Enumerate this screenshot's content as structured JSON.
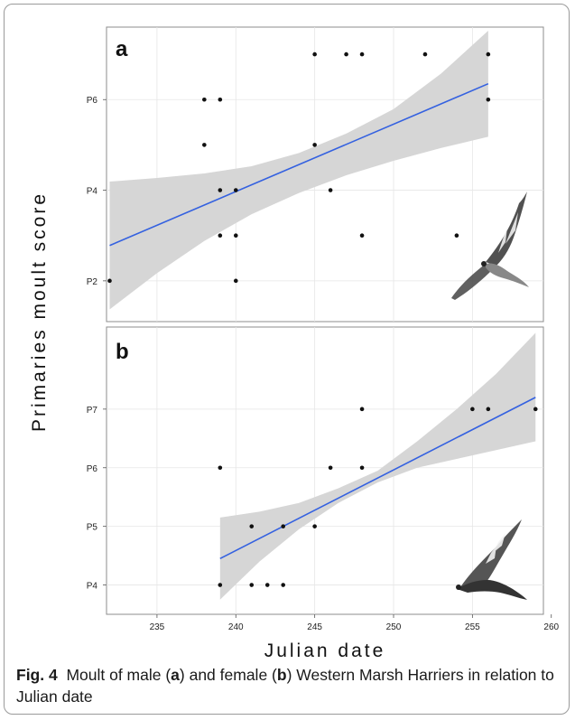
{
  "figure": {
    "ylabel": "Primaries moult score",
    "xlabel": "Julian date"
  },
  "caption": {
    "label": "Fig. 4",
    "text_1": "Moult of male (",
    "a": "a",
    "text_2": ") and female (",
    "b": "b",
    "text_3": ") Western Marsh Harriers in relation to Julian date"
  },
  "chart_data": [
    {
      "type": "scatter",
      "panel_label": "a",
      "x_ticks": [
        235,
        240,
        245,
        250,
        255,
        260
      ],
      "xlim": [
        231.8,
        259.5
      ],
      "y_ticks": [
        "P2",
        "P4",
        "P6"
      ],
      "ylim": [
        1.1,
        7.6
      ],
      "points": [
        [
          232,
          2
        ],
        [
          238,
          6
        ],
        [
          238,
          5
        ],
        [
          239,
          6
        ],
        [
          239,
          4
        ],
        [
          239,
          3
        ],
        [
          240,
          4
        ],
        [
          240,
          3
        ],
        [
          240,
          2
        ],
        [
          245,
          7
        ],
        [
          247,
          7
        ],
        [
          248,
          7
        ],
        [
          252,
          7
        ],
        [
          256,
          7
        ],
        [
          256,
          6
        ],
        [
          245,
          5
        ],
        [
          246,
          4
        ],
        [
          248,
          3
        ],
        [
          254,
          3
        ]
      ],
      "fit": {
        "x": [
          232,
          256
        ],
        "y": [
          2.78,
          6.35
        ]
      },
      "band_x": [
        232,
        235,
        238,
        241,
        244,
        247,
        250,
        253,
        256
      ],
      "band_lower": [
        1.37,
        2.17,
        2.88,
        3.47,
        3.94,
        4.33,
        4.65,
        4.93,
        5.18
      ],
      "band_upper": [
        4.19,
        4.27,
        4.37,
        4.53,
        4.82,
        5.25,
        5.79,
        6.57,
        7.52
      ],
      "grid": true,
      "fit_color": "#3461e0",
      "band_color": "#d6d6d6"
    },
    {
      "type": "scatter",
      "panel_label": "b",
      "x_ticks": [
        235,
        240,
        245,
        250,
        255,
        260
      ],
      "xlim": [
        231.8,
        259.5
      ],
      "y_ticks": [
        "P4",
        "P5",
        "P6",
        "P7"
      ],
      "y_tick_values": [
        4,
        5,
        6,
        7
      ],
      "ylim": [
        3.5,
        8.4
      ],
      "points": [
        [
          239,
          6
        ],
        [
          239,
          4
        ],
        [
          241,
          5
        ],
        [
          241,
          4
        ],
        [
          242,
          4
        ],
        [
          243,
          5
        ],
        [
          243,
          4
        ],
        [
          245,
          5
        ],
        [
          246,
          6
        ],
        [
          248,
          7
        ],
        [
          248,
          6
        ],
        [
          255,
          7
        ],
        [
          256,
          7
        ],
        [
          259,
          7
        ]
      ],
      "fit": {
        "x": [
          239,
          259
        ],
        "y": [
          4.45,
          7.2
        ]
      },
      "band_x": [
        239,
        241.5,
        244,
        246.5,
        249,
        251.5,
        254,
        256.5,
        259
      ],
      "band_lower": [
        3.75,
        4.4,
        4.95,
        5.4,
        5.75,
        6.0,
        6.15,
        6.3,
        6.45
      ],
      "band_upper": [
        5.15,
        5.25,
        5.4,
        5.65,
        5.95,
        6.45,
        7.0,
        7.6,
        8.3
      ],
      "grid": true,
      "fit_color": "#3461e0",
      "band_color": "#d6d6d6"
    }
  ]
}
